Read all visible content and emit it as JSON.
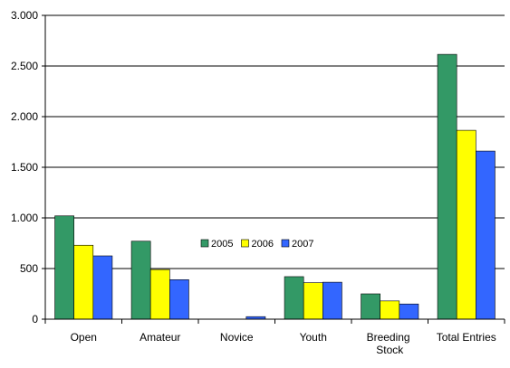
{
  "chart_data": {
    "type": "bar",
    "categories": [
      "Open",
      "Amateur",
      "Novice",
      "Youth",
      "Breeding Stock",
      "Total Entries"
    ],
    "series": [
      {
        "name": "2005",
        "color": "#339966",
        "values": [
          1020,
          770,
          0,
          420,
          250,
          2615
        ]
      },
      {
        "name": "2006",
        "color": "#ffff00",
        "values": [
          730,
          490,
          0,
          360,
          180,
          1865
        ]
      },
      {
        "name": "2007",
        "color": "#3366ff",
        "values": [
          625,
          390,
          25,
          365,
          150,
          1660
        ]
      }
    ],
    "ylim": [
      0,
      3000
    ],
    "yticks": [
      0,
      500,
      {
        "value": 1000,
        "label": "1.000"
      },
      {
        "value": 1500,
        "label": "1.500"
      },
      {
        "value": 2000,
        "label": "2.000"
      },
      {
        "value": 2500,
        "label": "2.500"
      },
      {
        "value": 3000,
        "label": "3.000"
      }
    ],
    "grid": true,
    "legend": "center"
  }
}
